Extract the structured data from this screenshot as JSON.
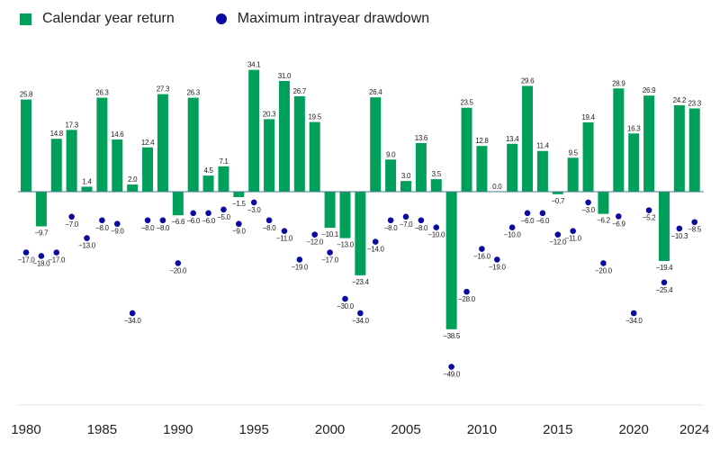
{
  "chart_data": {
    "type": "bar",
    "title": "",
    "xlabel": "",
    "ylabel": "",
    "ylim": [
      -55,
      36
    ],
    "grid": false,
    "legend_position": "top-left",
    "categories": [
      1980,
      1981,
      1982,
      1983,
      1984,
      1985,
      1986,
      1987,
      1988,
      1989,
      1990,
      1991,
      1992,
      1993,
      1994,
      1995,
      1996,
      1997,
      1998,
      1999,
      2000,
      2001,
      2002,
      2003,
      2004,
      2005,
      2006,
      2007,
      2008,
      2009,
      2010,
      2011,
      2012,
      2013,
      2014,
      2015,
      2016,
      2017,
      2018,
      2019,
      2020,
      2021,
      2022,
      2023,
      2024
    ],
    "x_tick_labels": [
      "1980",
      "1985",
      "1990",
      "1995",
      "2000",
      "2005",
      "2010",
      "2015",
      "2020",
      "2024"
    ],
    "series": [
      {
        "name": "Calendar year return",
        "type": "bar",
        "color": "#00a05a",
        "values": [
          25.8,
          -9.7,
          14.8,
          17.3,
          1.4,
          26.3,
          14.6,
          2.0,
          12.4,
          27.3,
          -6.6,
          26.3,
          4.5,
          7.1,
          -1.5,
          34.1,
          20.3,
          31.0,
          26.7,
          19.5,
          -10.1,
          -13.0,
          -23.4,
          26.4,
          9.0,
          3.0,
          13.6,
          3.5,
          -38.5,
          23.5,
          12.8,
          0.0,
          13.4,
          29.6,
          11.4,
          -0.7,
          9.5,
          19.4,
          -6.2,
          28.9,
          16.3,
          26.9,
          -19.4,
          24.2,
          23.3
        ]
      },
      {
        "name": "Maximum intrayear drawdown",
        "type": "scatter",
        "color": "#0a0aa0",
        "values": [
          -17.0,
          -18.0,
          -17.0,
          -7.0,
          -13.0,
          -8.0,
          -9.0,
          -34.0,
          -8.0,
          -8.0,
          -20.0,
          -6.0,
          -6.0,
          -5.0,
          -9.0,
          -3.0,
          -8.0,
          -11.0,
          -19.0,
          -12.0,
          -17.0,
          -30.0,
          -34.0,
          -14.0,
          -8.0,
          -7.0,
          -8.0,
          -10.0,
          -49.0,
          -28.0,
          -16.0,
          -19.0,
          -10.0,
          -6.0,
          -6.0,
          -12.0,
          -11.0,
          -3.0,
          -20.0,
          -6.9,
          -34.0,
          -5.2,
          -25.4,
          -10.3,
          -8.5
        ]
      }
    ]
  }
}
